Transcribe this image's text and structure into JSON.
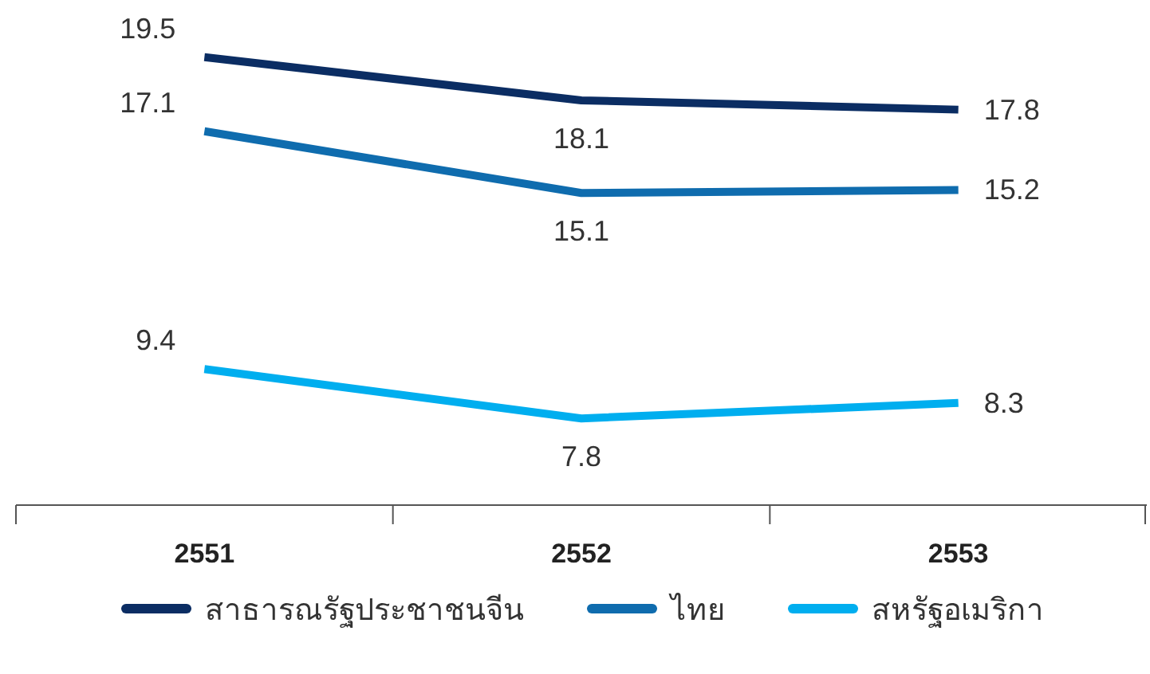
{
  "chart_data": {
    "type": "line",
    "categories": [
      "2551",
      "2552",
      "2553"
    ],
    "series": [
      {
        "name": "สาธารณรัฐประชาชนจีน",
        "color": "#0b2d63",
        "values": [
          19.5,
          18.1,
          17.8
        ]
      },
      {
        "name": "ไทย",
        "color": "#0f6cae",
        "values": [
          17.1,
          15.1,
          15.2
        ]
      },
      {
        "name": "สหรัฐอเมริกา",
        "color": "#00aeef",
        "values": [
          9.4,
          7.8,
          8.3
        ]
      }
    ],
    "data_labels": true,
    "legend": "bottom",
    "marker": "none",
    "line_style": "solid"
  }
}
